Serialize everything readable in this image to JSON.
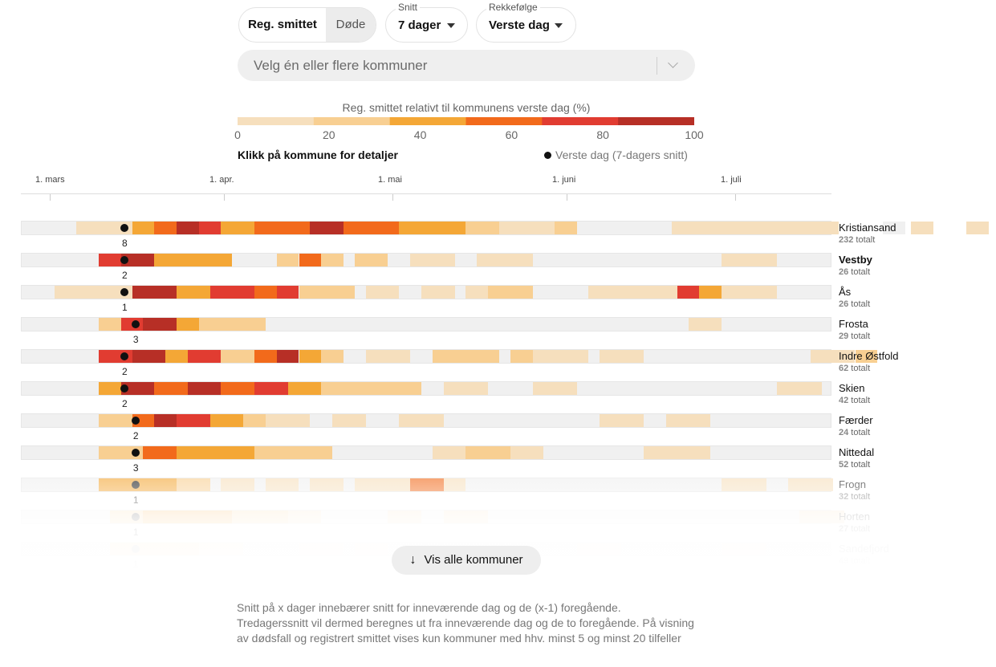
{
  "controls": {
    "metric_options": [
      "Reg. smittet",
      "Døde"
    ],
    "average_caption": "Snitt",
    "average_value": "7 dager",
    "order_caption": "Rekkefølge",
    "order_value": "Verste dag",
    "municipality_placeholder": "Velg én eller flere kommuner"
  },
  "legend": {
    "title": "Reg. smittet relativt til kommunens verste dag (%)",
    "ticks": [
      "0",
      "20",
      "40",
      "60",
      "80",
      "100"
    ],
    "colors": [
      "#f6dfbd",
      "#f8cf92",
      "#f4a736",
      "#f26a1b",
      "#e13c31",
      "#b72f26"
    ],
    "hint": "Klikk på kommune for detaljer",
    "peak_label": "Verste dag (7-dagers snitt)"
  },
  "chart_data": {
    "type": "heatmap",
    "x_months": [
      "1. mars",
      "1. apr.",
      "1. mai",
      "1. juni",
      "1. juli"
    ],
    "value_unit": "% of worst day",
    "rows": [
      {
        "name": "Kristiansand",
        "total": "232",
        "totalt": "totalt",
        "peak_day": 10,
        "peak_value": "8",
        "segments": [
          [
            10,
            15,
            15
          ],
          [
            20,
            5,
            35
          ],
          [
            24,
            6,
            65
          ],
          [
            28,
            4,
            100
          ],
          [
            32,
            4,
            70
          ],
          [
            36,
            6,
            45
          ],
          [
            42,
            10,
            65
          ],
          [
            52,
            6,
            90
          ],
          [
            58,
            10,
            55
          ],
          [
            68,
            12,
            45
          ],
          [
            80,
            20,
            20
          ],
          [
            86,
            10,
            10
          ],
          [
            106,
            12,
            0
          ],
          [
            117,
            14,
            10
          ],
          [
            131,
            16,
            5
          ],
          [
            155,
            4,
            0
          ],
          [
            160,
            4,
            10
          ],
          [
            170,
            4,
            5
          ]
        ]
      },
      {
        "name": "Vestby",
        "total": "26",
        "totalt": "totalt",
        "peak_day": 10,
        "peak_value": "2",
        "bold": true,
        "segments": [
          [
            14,
            4,
            70
          ],
          [
            18,
            6,
            95
          ],
          [
            24,
            4,
            50
          ],
          [
            28,
            4,
            35
          ],
          [
            32,
            6,
            45
          ],
          [
            38,
            8,
            0
          ],
          [
            46,
            4,
            30
          ],
          [
            50,
            4,
            60
          ],
          [
            54,
            4,
            30
          ],
          [
            60,
            6,
            20
          ],
          [
            70,
            8,
            15
          ],
          [
            82,
            10,
            12
          ],
          [
            108,
            8,
            0
          ],
          [
            126,
            10,
            15
          ]
        ]
      },
      {
        "name": "Ås",
        "total": "26",
        "totalt": "totalt",
        "peak_day": 10,
        "peak_value": "1",
        "segments": [
          [
            6,
            14,
            15
          ],
          [
            20,
            4,
            90
          ],
          [
            24,
            4,
            100
          ],
          [
            28,
            6,
            40
          ],
          [
            34,
            8,
            80
          ],
          [
            42,
            4,
            55
          ],
          [
            46,
            4,
            70
          ],
          [
            50,
            10,
            30
          ],
          [
            62,
            6,
            15
          ],
          [
            72,
            6,
            12
          ],
          [
            80,
            4,
            10
          ],
          [
            84,
            8,
            30
          ],
          [
            102,
            16,
            15
          ],
          [
            118,
            4,
            70
          ],
          [
            122,
            4,
            45
          ],
          [
            126,
            10,
            10
          ]
        ]
      },
      {
        "name": "Frosta",
        "total": "29",
        "totalt": "totalt",
        "peak_day": 12,
        "peak_value": "3",
        "segments": [
          [
            14,
            4,
            30
          ],
          [
            18,
            4,
            80
          ],
          [
            22,
            6,
            100
          ],
          [
            28,
            4,
            40
          ],
          [
            32,
            6,
            20
          ],
          [
            38,
            6,
            25
          ],
          [
            120,
            6,
            10
          ]
        ]
      },
      {
        "name": "Indre Østfold",
        "total": "62",
        "totalt": "totalt",
        "peak_day": 10,
        "peak_value": "2",
        "segments": [
          [
            14,
            6,
            70
          ],
          [
            20,
            6,
            90
          ],
          [
            26,
            4,
            45
          ],
          [
            30,
            6,
            75
          ],
          [
            36,
            6,
            30
          ],
          [
            42,
            4,
            65
          ],
          [
            46,
            4,
            85
          ],
          [
            50,
            4,
            40
          ],
          [
            54,
            4,
            20
          ],
          [
            62,
            8,
            12
          ],
          [
            74,
            12,
            18
          ],
          [
            88,
            4,
            25
          ],
          [
            92,
            10,
            15
          ],
          [
            104,
            8,
            15
          ],
          [
            142,
            8,
            15
          ],
          [
            150,
            4,
            20
          ]
        ]
      },
      {
        "name": "Skien",
        "total": "42",
        "totalt": "totalt",
        "peak_day": 10,
        "peak_value": "2",
        "segments": [
          [
            14,
            4,
            35
          ],
          [
            18,
            6,
            90
          ],
          [
            24,
            6,
            55
          ],
          [
            30,
            6,
            85
          ],
          [
            36,
            6,
            60
          ],
          [
            42,
            6,
            75
          ],
          [
            48,
            6,
            45
          ],
          [
            54,
            8,
            25
          ],
          [
            62,
            10,
            20
          ],
          [
            76,
            8,
            15
          ],
          [
            92,
            8,
            12
          ],
          [
            136,
            8,
            15
          ]
        ]
      },
      {
        "name": "Færder",
        "total": "24",
        "totalt": "totalt",
        "peak_day": 12,
        "peak_value": "2",
        "segments": [
          [
            14,
            6,
            30
          ],
          [
            20,
            4,
            60
          ],
          [
            24,
            4,
            100
          ],
          [
            28,
            6,
            70
          ],
          [
            34,
            6,
            35
          ],
          [
            40,
            6,
            30
          ],
          [
            44,
            8,
            12
          ],
          [
            56,
            6,
            10
          ],
          [
            68,
            8,
            10
          ],
          [
            104,
            8,
            10
          ],
          [
            116,
            8,
            12
          ]
        ]
      },
      {
        "name": "Nittedal",
        "total": "52",
        "totalt": "totalt",
        "peak_day": 12,
        "peak_value": "3",
        "segments": [
          [
            14,
            8,
            25
          ],
          [
            22,
            6,
            55
          ],
          [
            28,
            8,
            45
          ],
          [
            36,
            6,
            40
          ],
          [
            42,
            4,
            30
          ],
          [
            46,
            10,
            20
          ],
          [
            74,
            6,
            15
          ],
          [
            80,
            8,
            25
          ],
          [
            88,
            6,
            12
          ],
          [
            112,
            8,
            12
          ],
          [
            120,
            4,
            10
          ]
        ]
      },
      {
        "name": "Frogn",
        "total": "32",
        "totalt": "totalt",
        "peak_day": 12,
        "peak_value": "1",
        "opacity": 0.65,
        "segments": [
          [
            14,
            8,
            45
          ],
          [
            22,
            6,
            35
          ],
          [
            28,
            6,
            25
          ],
          [
            36,
            6,
            15
          ],
          [
            44,
            6,
            10
          ],
          [
            52,
            6,
            12
          ],
          [
            60,
            10,
            12
          ],
          [
            70,
            6,
            65
          ],
          [
            76,
            4,
            15
          ],
          [
            126,
            8,
            15
          ],
          [
            138,
            8,
            12
          ]
        ]
      },
      {
        "name": "Horten",
        "total": "27",
        "totalt": "totalt",
        "peak_day": 12,
        "peak_value": "1",
        "opacity": 0.35,
        "segments": [
          [
            16,
            6,
            30
          ],
          [
            22,
            8,
            45
          ],
          [
            30,
            8,
            40
          ],
          [
            38,
            10,
            20
          ],
          [
            48,
            6,
            10
          ],
          [
            66,
            6,
            10
          ],
          [
            76,
            8,
            15
          ],
          [
            140,
            8,
            12
          ]
        ]
      },
      {
        "name": "Sandefjord",
        "total": "49",
        "totalt": "totalt",
        "peak_day": 12,
        "peak_value": "1",
        "opacity": 0.15,
        "segments": [
          [
            16,
            6,
            45
          ],
          [
            22,
            10,
            35
          ],
          [
            32,
            8,
            20
          ],
          [
            50,
            8,
            12
          ],
          [
            60,
            6,
            10
          ],
          [
            100,
            8,
            12
          ],
          [
            126,
            8,
            10
          ]
        ]
      }
    ]
  },
  "show_all_label": "Vis alle kommuner",
  "footnote": "Snitt på x dager innebærer snitt for inneværende dag og de (x-1) foregående. Tredagerssnitt vil dermed beregnes ut fra inneværende dag og de to foregående. På visning av dødsfall og registrert smittet vises kun kommuner med hhv. minst 5 og minst 20 tilfeller"
}
